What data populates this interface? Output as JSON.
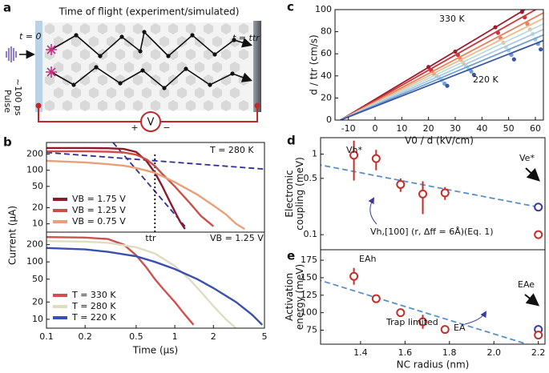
{
  "panel_labels": [
    "a",
    "b",
    "c",
    "d",
    "e"
  ],
  "diagram": {
    "title": "Time of flight (experiment/simulated)",
    "start_label": "t = 0",
    "end_label": "t = ttr",
    "pulse_label": [
      "~100 ps",
      "Pulse"
    ],
    "meter": "V",
    "plus": "+",
    "minus": "−"
  },
  "chart_data": [
    {
      "type": "line",
      "xlog": true,
      "ylog": true,
      "xlim": [
        0.1,
        5
      ],
      "ylim": [
        7,
        330
      ],
      "yticks": [
        10,
        20,
        50,
        100,
        200
      ],
      "ylabel": "Current (µA)",
      "annotations": [
        "T = 280 K",
        "ttr"
      ],
      "legend": "lower left",
      "series": [
        {
          "name": "VB = 1.75 V",
          "color": "#8c1c2c",
          "x": [
            0.1,
            0.2,
            0.3,
            0.4,
            0.5,
            0.6,
            0.7,
            0.8,
            0.9,
            1.0,
            1.1,
            1.2
          ],
          "values": [
            260,
            260,
            258,
            250,
            220,
            150,
            90,
            50,
            28,
            17,
            11,
            8
          ]
        },
        {
          "name": "VB = 1.25 V",
          "color": "#c9504a",
          "x": [
            0.1,
            0.2,
            0.3,
            0.4,
            0.5,
            0.6,
            0.7,
            0.8,
            1.0,
            1.3,
            1.6,
            2.0
          ],
          "values": [
            225,
            225,
            222,
            215,
            195,
            160,
            120,
            85,
            50,
            25,
            14,
            9
          ]
        },
        {
          "name": "VB = 0.75 V",
          "color": "#e8a07a",
          "x": [
            0.1,
            0.2,
            0.3,
            0.4,
            0.5,
            0.7,
            1.0,
            1.5,
            2.0,
            2.5,
            3.0,
            3.5
          ],
          "values": [
            150,
            140,
            130,
            122,
            110,
            90,
            60,
            35,
            22,
            15,
            10,
            8
          ]
        }
      ],
      "lines": [
        {
          "color": "#2e2e9a",
          "style": "dashed",
          "x": [
            0.1,
            5
          ],
          "values": [
            215,
            105
          ]
        },
        {
          "color": "#2e2e9a",
          "style": "dashed",
          "x": [
            0.33,
            1.2
          ],
          "values": [
            330,
            9
          ]
        },
        {
          "color": "#000000",
          "style": "dotted",
          "x": [
            0.7,
            0.7
          ],
          "values": [
            7,
            215
          ]
        }
      ]
    },
    {
      "type": "line",
      "xlog": true,
      "ylog": true,
      "xlim": [
        0.1,
        5
      ],
      "ylim": [
        7,
        330
      ],
      "yticks": [
        10,
        20,
        50,
        100,
        200
      ],
      "xticks": [
        0.1,
        0.2,
        0.5,
        1,
        2,
        5
      ],
      "xlabel": "Time (µs)",
      "annotations": [
        "VB = 1.25 V"
      ],
      "legend": "lower left",
      "series": [
        {
          "name": "T = 330 K",
          "color": "#d05050",
          "x": [
            0.1,
            0.2,
            0.3,
            0.4,
            0.5,
            0.6,
            0.7,
            0.8,
            1.0,
            1.2,
            1.4
          ],
          "values": [
            270,
            265,
            250,
            200,
            130,
            80,
            50,
            35,
            20,
            12,
            8
          ]
        },
        {
          "name": "T = 280 K",
          "color": "#e0dcc4",
          "x": [
            0.1,
            0.2,
            0.3,
            0.5,
            0.7,
            1.0,
            1.3,
            1.6,
            2.0,
            2.5,
            3.0
          ],
          "values": [
            230,
            225,
            215,
            180,
            140,
            85,
            50,
            30,
            17,
            10,
            7
          ]
        },
        {
          "name": "T = 220 K",
          "color": "#3a50b0",
          "x": [
            0.1,
            0.2,
            0.3,
            0.5,
            0.7,
            1.0,
            1.5,
            2.0,
            3.0,
            4.0,
            4.8
          ],
          "values": [
            175,
            165,
            150,
            125,
            100,
            75,
            50,
            35,
            20,
            12,
            8
          ]
        }
      ]
    },
    {
      "type": "scatter",
      "xlim": [
        -15,
        63
      ],
      "ylim": [
        0,
        100
      ],
      "xticks": [
        -10,
        0,
        10,
        20,
        30,
        40,
        50,
        60
      ],
      "yticks": [
        0,
        20,
        40,
        60,
        80,
        100
      ],
      "xlabel": "V0 / d (kV/cm)",
      "ylabel": "d / ttr (cm/s)",
      "annotations": [
        "330 K",
        "220 K"
      ],
      "marker": "dot",
      "series": [
        {
          "color": "#9b1c2e",
          "x": [
            20,
            30,
            45,
            55
          ],
          "values": [
            48,
            62,
            84,
            98
          ],
          "fit_x": [
            -13,
            63
          ],
          "fit_values": [
            0,
            110
          ]
        },
        {
          "color": "#c8383a",
          "x": [
            21,
            31,
            46,
            56
          ],
          "values": [
            45,
            59,
            79,
            93
          ],
          "fit_x": [
            -13,
            63
          ],
          "fit_values": [
            0,
            104
          ]
        },
        {
          "color": "#e8825a",
          "x": [
            22,
            32,
            47,
            57
          ],
          "values": [
            42,
            55,
            74,
            87
          ],
          "fit_x": [
            -13,
            63
          ],
          "fit_values": [
            0,
            97
          ]
        },
        {
          "color": "#f2b98f",
          "x": [
            23,
            33,
            48,
            58
          ],
          "values": [
            40,
            52,
            70,
            82
          ],
          "fit_x": [
            -13,
            63
          ],
          "fit_values": [
            0,
            92
          ]
        },
        {
          "color": "#bcdcdc",
          "x": [
            24,
            34,
            49,
            59
          ],
          "values": [
            38,
            49,
            66,
            78
          ],
          "fit_x": [
            -13,
            63
          ],
          "fit_values": [
            0,
            87
          ]
        },
        {
          "color": "#a8cbe3",
          "x": [
            25,
            35,
            50,
            60
          ],
          "values": [
            36,
            46,
            63,
            73
          ],
          "fit_x": [
            -13,
            63
          ],
          "fit_values": [
            0,
            82
          ]
        },
        {
          "color": "#6f9fd3",
          "x": [
            26,
            36,
            51,
            61
          ],
          "values": [
            33,
            44,
            59,
            69
          ],
          "fit_x": [
            -13,
            63
          ],
          "fit_values": [
            0,
            77
          ]
        },
        {
          "color": "#3a55a8",
          "x": [
            27,
            37,
            52,
            62
          ],
          "values": [
            31,
            41,
            55,
            64
          ],
          "fit_x": [
            -13,
            63
          ],
          "fit_values": [
            0,
            72
          ]
        }
      ]
    },
    {
      "type": "scatter",
      "ylog": true,
      "xlim": [
        1.22,
        2.23
      ],
      "ylim": [
        0.065,
        1.6
      ],
      "yticks": [
        0.1,
        0.5,
        1
      ],
      "ylabel": [
        "Electronic",
        "coupling (meV)"
      ],
      "annotations": [
        "Vh*",
        "Ve*",
        "Vh,[100] (r, Δff = 6Å)(Eq. 1)"
      ],
      "marker": "open",
      "series": [
        {
          "color": "#c0302a",
          "x": [
            1.37,
            1.47,
            1.58,
            1.68,
            1.78
          ],
          "values": [
            0.97,
            0.88,
            0.42,
            0.32,
            0.33
          ],
          "errors": [
            0.5,
            0.25,
            0.08,
            0.14,
            0.06
          ]
        },
        {
          "color": "#3a3a9a",
          "x": [
            2.2
          ],
          "values": [
            0.22
          ]
        },
        {
          "color": "#c0302a",
          "x": [
            2.2
          ],
          "values": [
            0.1
          ]
        }
      ],
      "lines": [
        {
          "color": "#5b8fc8",
          "style": "dashed",
          "x": [
            1.2,
            2.2
          ],
          "values": [
            0.75,
            0.22
          ]
        }
      ]
    },
    {
      "type": "scatter",
      "xlim": [
        1.22,
        2.23
      ],
      "ylim": [
        55,
        190
      ],
      "yticks": [
        75,
        100,
        125,
        150,
        175
      ],
      "xticks": [
        1.4,
        1.6,
        1.8,
        {
          "value": 2,
          "label": "2.0"
        },
        2.2
      ],
      "xlabel": "NC radius (nm)",
      "ylabel": [
        "Activation",
        "energy (meV)"
      ],
      "annotations": [
        "EAh",
        "EAe",
        "EA",
        "Trap limited"
      ],
      "marker": "open",
      "series": [
        {
          "color": "#c0302a",
          "x": [
            1.37,
            1.47,
            1.58,
            1.68,
            1.78
          ],
          "values": [
            152,
            120,
            100,
            87,
            76
          ],
          "errors": [
            12,
            4,
            5,
            10,
            3
          ]
        },
        {
          "color": "#3a3a9a",
          "x": [
            2.2
          ],
          "values": [
            76
          ]
        },
        {
          "color": "#c0302a",
          "x": [
            2.2
          ],
          "values": [
            68
          ]
        }
      ],
      "lines": [
        {
          "color": "#5b8fc8",
          "style": "dashed",
          "x": [
            1.2,
            2.15
          ],
          "values": [
            148,
            55
          ]
        }
      ]
    }
  ]
}
